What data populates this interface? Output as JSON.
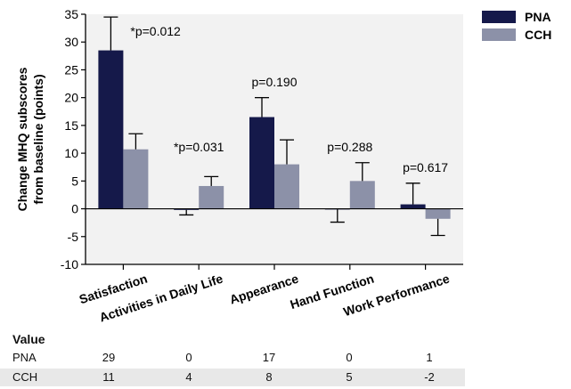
{
  "chart_data": {
    "type": "bar",
    "ylabel": "Change MHQ subscores from baseline (points)",
    "ylim": [
      -10,
      35
    ],
    "yticks": [
      -10,
      -5,
      0,
      5,
      10,
      15,
      20,
      25,
      30,
      35
    ],
    "categories": [
      "Satisfaction",
      "Activities in Daily Life",
      "Appearance",
      "Hand Function",
      "Work Performance"
    ],
    "series": [
      {
        "name": "PNA",
        "color": "#15194a",
        "values": [
          28.5,
          -0.2,
          16.5,
          -0.1,
          0.8
        ],
        "error": [
          6.0,
          0.9,
          3.5,
          2.3,
          3.8
        ]
      },
      {
        "name": "CCH",
        "color": "#8c91a8",
        "values": [
          10.7,
          4.1,
          8.0,
          5.0,
          -1.8
        ],
        "error": [
          2.8,
          1.7,
          4.4,
          3.3,
          3.0
        ]
      }
    ],
    "annotations": [
      "*p=0.012",
      "*p=0.031",
      "p=0.190",
      "p=0.288",
      "p=0.617"
    ],
    "legend_position": "top-right",
    "grid": false
  },
  "table": {
    "header": "Value",
    "rows": [
      {
        "label": "PNA",
        "values": [
          "29",
          "0",
          "17",
          "0",
          "1"
        ]
      },
      {
        "label": "CCH",
        "values": [
          "11",
          "4",
          "8",
          "5",
          "-2"
        ]
      }
    ]
  }
}
